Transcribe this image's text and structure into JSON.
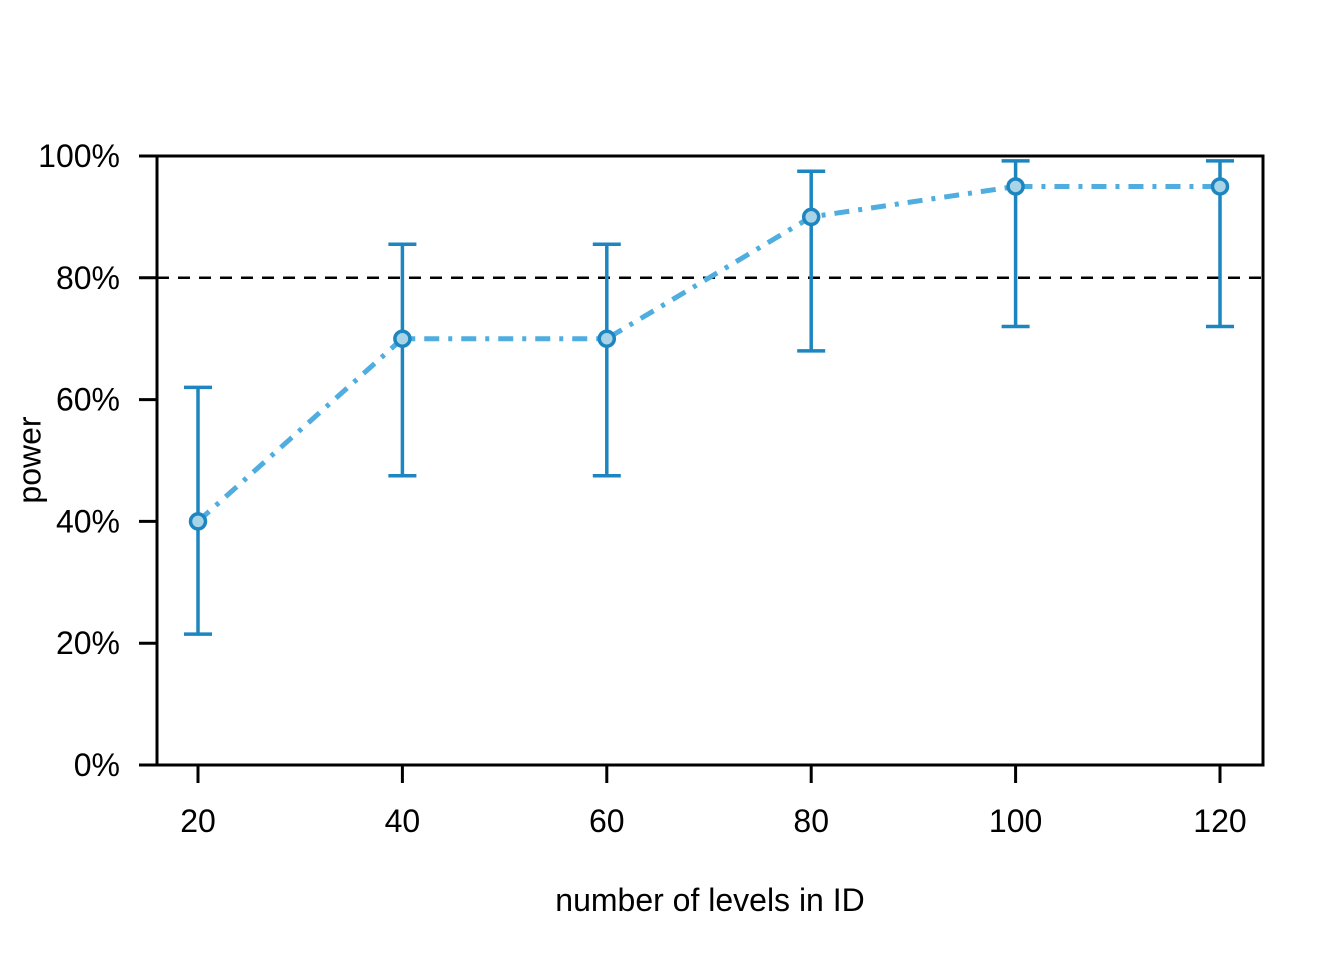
{
  "figure": {
    "background": "#ffffff"
  },
  "chart_data": {
    "type": "line",
    "title": "",
    "xlabel": "number of levels in ID",
    "ylabel": "power",
    "x": [
      20,
      40,
      60,
      80,
      100,
      120
    ],
    "series": [
      {
        "name": "power",
        "marker": "circle",
        "line_style": "dotdash",
        "values": [
          40,
          70,
          70,
          90,
          95,
          95
        ],
        "ci_low": [
          21.5,
          47.5,
          47.5,
          68,
          72,
          72
        ],
        "ci_high": [
          62,
          85.5,
          85.5,
          97.5,
          99.2,
          99.2
        ]
      }
    ],
    "reference_line": {
      "y": 80,
      "style": "dashed",
      "color": "#000000"
    },
    "x_tick_values": [
      20,
      40,
      60,
      80,
      100,
      120
    ],
    "x_tick_labels": [
      "20",
      "40",
      "60",
      "80",
      "100",
      "120"
    ],
    "y_tick_values": [
      0,
      20,
      40,
      60,
      80,
      100
    ],
    "y_tick_labels": [
      "0%",
      "20%",
      "40%",
      "60%",
      "80%",
      "100%"
    ],
    "xlim": [
      16,
      124.2
    ],
    "ylim": [
      0,
      100
    ],
    "grid": false,
    "legend": "none",
    "colors": {
      "line": "#4fade0",
      "marker_fill": "#a9d3e7",
      "marker_stroke": "#1d86c0",
      "errorbar": "#1d86c0",
      "axis": "#000000",
      "text": "#000000",
      "reference": "#000000"
    }
  }
}
